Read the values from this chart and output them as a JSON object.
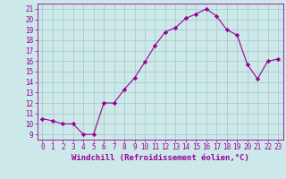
{
  "x": [
    0,
    1,
    2,
    3,
    4,
    5,
    6,
    7,
    8,
    9,
    10,
    11,
    12,
    13,
    14,
    15,
    16,
    17,
    18,
    19,
    20,
    21,
    22,
    23
  ],
  "y": [
    10.5,
    10.3,
    10.0,
    10.0,
    9.0,
    9.0,
    12.0,
    12.0,
    13.3,
    14.4,
    15.9,
    17.5,
    18.8,
    19.2,
    20.1,
    20.5,
    21.0,
    20.3,
    19.0,
    18.5,
    15.7,
    14.3,
    16.0,
    16.2
  ],
  "line_color": "#990099",
  "marker": "D",
  "marker_size": 2.2,
  "bg_color": "#cce8e8",
  "grid_color": "#aacccc",
  "xlabel": "Windchill (Refroidissement éolien,°C)",
  "tick_color": "#990099",
  "ylim": [
    8.5,
    21.5
  ],
  "xlim": [
    -0.5,
    23.5
  ],
  "yticks": [
    9,
    10,
    11,
    12,
    13,
    14,
    15,
    16,
    17,
    18,
    19,
    20,
    21
  ],
  "xticks": [
    0,
    1,
    2,
    3,
    4,
    5,
    6,
    7,
    8,
    9,
    10,
    11,
    12,
    13,
    14,
    15,
    16,
    17,
    18,
    19,
    20,
    21,
    22,
    23
  ],
  "tick_fontsize": 5.5,
  "xlabel_fontsize": 6.5
}
